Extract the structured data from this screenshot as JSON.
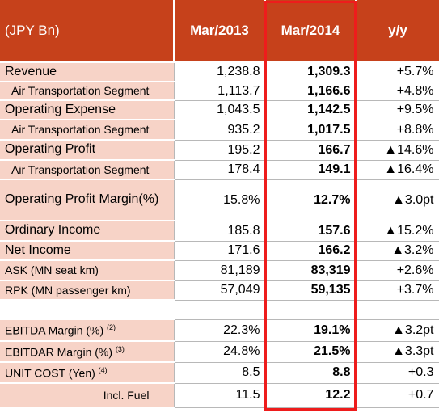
{
  "table": {
    "header": [
      "(JPY Bn)",
      "Mar/2013",
      "Mar/2014",
      "y/y"
    ],
    "rows": [
      {
        "label": "Revenue",
        "mar2013": "1,238.8",
        "mar2014": "1,309.3",
        "yoy": "+5.7%"
      },
      {
        "label": "Air Transportation Segment",
        "mar2013": "1,113.7",
        "mar2014": "1,166.6",
        "yoy": "+4.8%"
      },
      {
        "label": "Operating Expense",
        "mar2013": "1,043.5",
        "mar2014": "1,142.5",
        "yoy": "+9.5%"
      },
      {
        "label": "Air Transportation Segment",
        "mar2013": "935.2",
        "mar2014": "1,017.5",
        "yoy": "+8.8%"
      },
      {
        "label": "Operating Profit",
        "mar2013": "195.2",
        "mar2014": "166.7",
        "yoy": "▲14.6%"
      },
      {
        "label": "Air Transportation Segment",
        "mar2013": "178.4",
        "mar2014": "149.1",
        "yoy": "▲16.4%"
      },
      {
        "label": "Operating Profit Margin(%)",
        "mar2013": "15.8%",
        "mar2014": "12.7%",
        "yoy": "▲3.0pt"
      },
      {
        "label": "Ordinary Income",
        "mar2013": "185.8",
        "mar2014": "157.6",
        "yoy": "▲15.2%"
      },
      {
        "label": "Net Income",
        "mar2013": "171.6",
        "mar2014": "166.2",
        "yoy": "▲3.2%"
      },
      {
        "label": "ASK (MN seat km)",
        "mar2013": "81,189",
        "mar2014": "83,319",
        "yoy": "+2.6%"
      },
      {
        "label": "RPK (MN passenger km)",
        "mar2013": "57,049",
        "mar2014": "59,135",
        "yoy": "+3.7%"
      },
      {
        "label": "EBITDA Margin (%)",
        "note": "(2)",
        "mar2013": "22.3%",
        "mar2014": "19.1%",
        "yoy": "▲3.2pt"
      },
      {
        "label": "EBITDAR Margin (%)",
        "note": "(3)",
        "mar2013": "24.8%",
        "mar2014": "21.5%",
        "yoy": "▲3.3pt"
      },
      {
        "label": "UNIT COST (Yen)",
        "note": "(4)",
        "mar2013": "8.5",
        "mar2014": "8.8",
        "yoy": "+0.3"
      },
      {
        "label": "Incl. Fuel",
        "mar2013": "11.5",
        "mar2014": "12.2",
        "yoy": "+0.7"
      }
    ]
  }
}
